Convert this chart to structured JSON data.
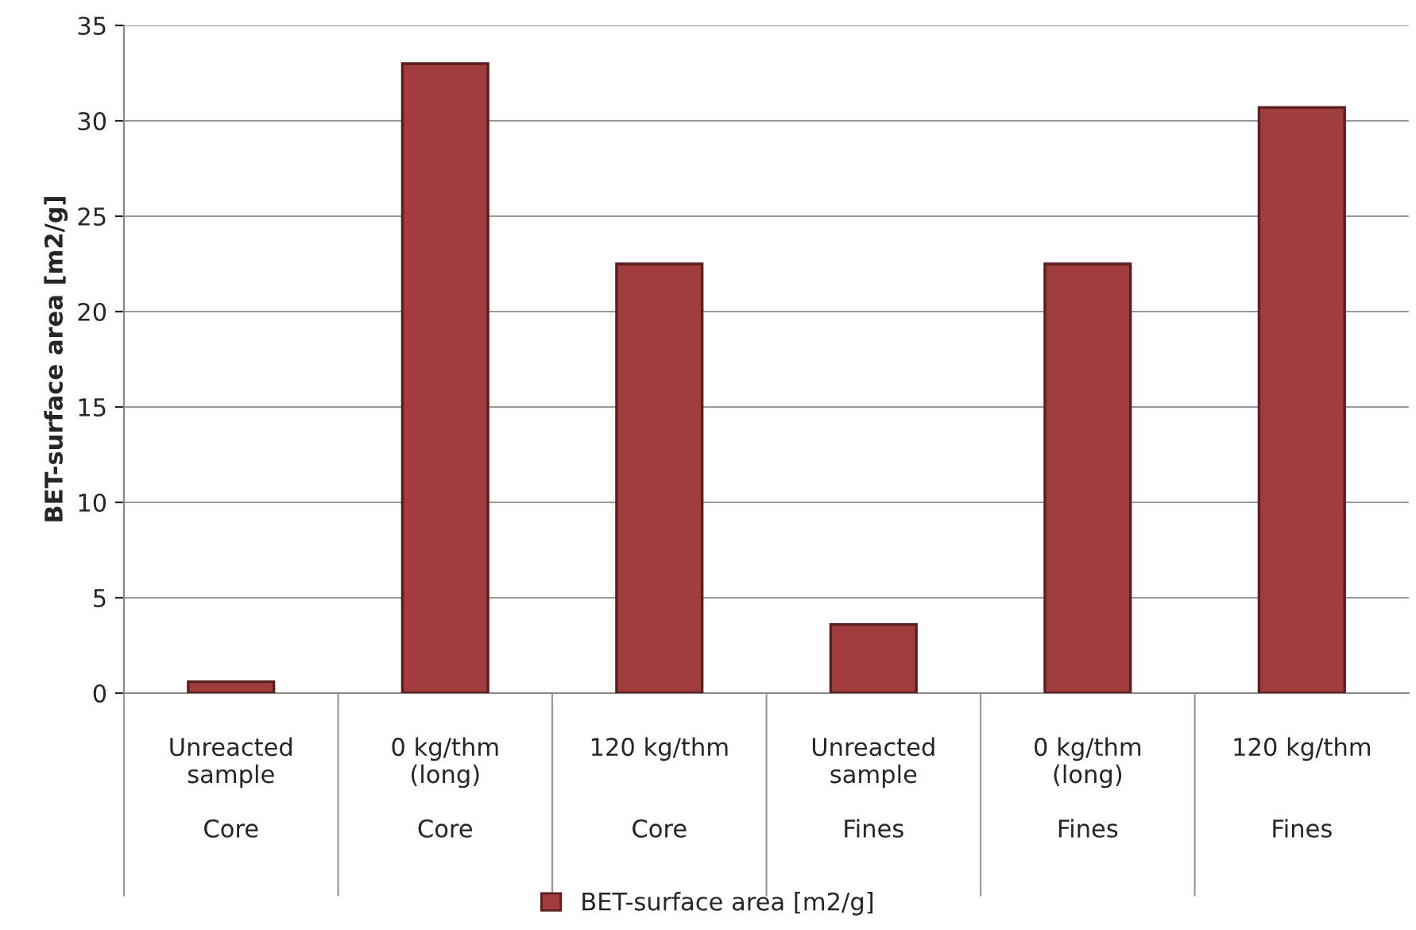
{
  "chart_data": {
    "type": "bar",
    "ylabel": "BET-surface area [m2/g]",
    "categories": [
      "Unreacted\nsample\n\nCore",
      "0 kg/thm\n(long)\n\nCore",
      "120 kg/thm\n\n\nCore",
      "Unreacted\nsample\n\nFines",
      "0 kg/thm\n(long)\n\nFines",
      "120 kg/thm\n\n\nFines"
    ],
    "series": [
      {
        "name": "BET-surface area [m2/g]",
        "color": "#9e3d3b",
        "values": [
          0.6,
          33.0,
          22.5,
          3.6,
          22.5,
          30.7
        ]
      }
    ],
    "ylim": [
      0,
      35
    ],
    "yticks": [
      0,
      5,
      10,
      15,
      20,
      25,
      30,
      35
    ],
    "grid": "y",
    "legend": "bottom"
  }
}
